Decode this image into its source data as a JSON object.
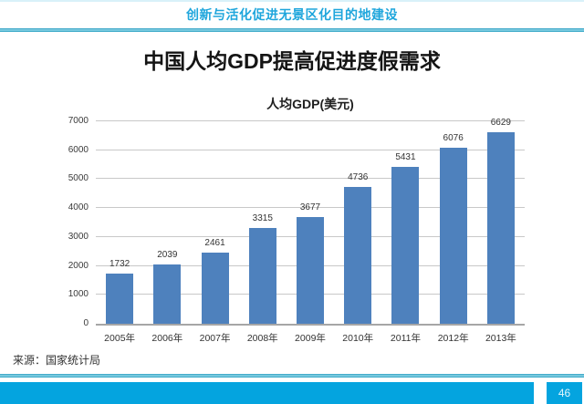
{
  "header": {
    "title": "创新与活化促进无景区化目的地建设"
  },
  "slide": {
    "title": "中国人均GDP提高促进度假需求"
  },
  "chart_data": {
    "type": "bar",
    "title": "人均GDP(美元)",
    "categories": [
      "2005年",
      "2006年",
      "2007年",
      "2008年",
      "2009年",
      "2010年",
      "2011年",
      "2012年",
      "2013年"
    ],
    "values": [
      1732,
      2039,
      2461,
      3315,
      3677,
      4736,
      5431,
      6076,
      6629
    ],
    "xlabel": "",
    "ylabel": "",
    "ylim": [
      0,
      7000
    ],
    "ytick_step": 1000,
    "grid": true,
    "legend": "none",
    "bar_color": "#4e81bd"
  },
  "source": {
    "label": "来源：国家统计局"
  },
  "footer": {
    "page_number": "46"
  },
  "colors": {
    "accent_cyan": "#04a4df",
    "header_text_cyan": "#1fa6dc",
    "rule_cyan": "#2d9fc0",
    "bar_blue": "#4e81bd",
    "gridline_gray": "#c8c8c8"
  }
}
